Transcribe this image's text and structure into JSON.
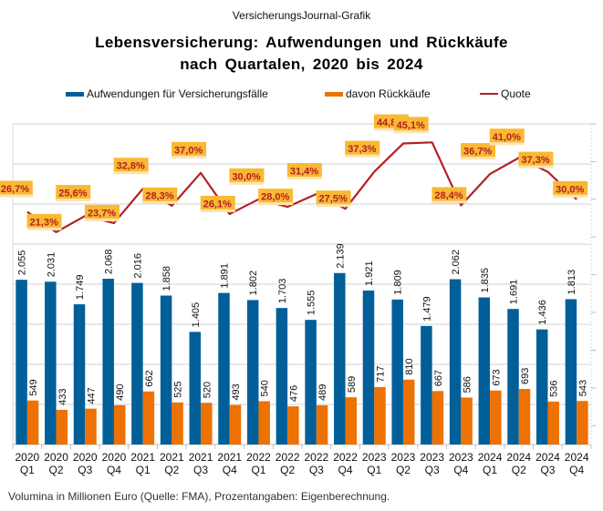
{
  "header": {
    "source": "VersicherungsJournal-Grafik",
    "title_line1": "Lebensversicherung: Aufwendungen und Rückkäufe",
    "title_line2": "nach Quartalen, 2020 bis 2024"
  },
  "footnote": "Volumina in Millionen Euro (Quelle: FMA), Prozentangaben: Eigenberechnung.",
  "colors": {
    "aufwendungen": "#005f99",
    "rueckkaeufe": "#ed7103",
    "quote": "#b32025",
    "label_box": "#f9b933",
    "grid": "#d0d0d0"
  },
  "chart_data": {
    "type": "bar",
    "title": "Lebensversicherung: Aufwendungen und Rückkäufe nach Quartalen, 2020 bis 2024",
    "xlabel": "",
    "ylabel": "Volumina in Millionen Euro",
    "ylim": [
      0,
      4000
    ],
    "y2lim": [
      -35,
      50
    ],
    "grid": true,
    "legend_position": "top",
    "categories": [
      [
        "2020",
        "Q1"
      ],
      [
        "2020",
        "Q2"
      ],
      [
        "2020",
        "Q3"
      ],
      [
        "2020",
        "Q4"
      ],
      [
        "2021",
        "Q1"
      ],
      [
        "2021",
        "Q2"
      ],
      [
        "2021",
        "Q3"
      ],
      [
        "2021",
        "Q4"
      ],
      [
        "2022",
        "Q1"
      ],
      [
        "2022",
        "Q2"
      ],
      [
        "2022",
        "Q3"
      ],
      [
        "2022",
        "Q4"
      ],
      [
        "2023",
        "Q1"
      ],
      [
        "2023",
        "Q2"
      ],
      [
        "2023",
        "Q3"
      ],
      [
        "2023",
        "Q4"
      ],
      [
        "2024",
        "Q1"
      ],
      [
        "2024",
        "Q2"
      ],
      [
        "2024",
        "Q3"
      ],
      [
        "2024",
        "Q4"
      ]
    ],
    "series": [
      {
        "name": "Aufwendungen für Versicherungsfälle",
        "kind": "bar",
        "values": [
          2055,
          2031,
          1749,
          2068,
          2016,
          1858,
          1405,
          1891,
          1802,
          1703,
          1555,
          2139,
          1921,
          1809,
          1479,
          2062,
          1835,
          1691,
          1436,
          1813
        ],
        "labels": [
          "2.055",
          "2.031",
          "1.749",
          "2.068",
          "2.016",
          "1.858",
          "1.405",
          "1.891",
          "1.802",
          "1.703",
          "1.555",
          "2.139",
          "1.921",
          "1.809",
          "1.479",
          "2.062",
          "1.835",
          "1.691",
          "1.436",
          "1.813"
        ]
      },
      {
        "name": "davon Rückkäufe",
        "kind": "bar",
        "values": [
          549,
          433,
          447,
          490,
          662,
          525,
          520,
          493,
          540,
          476,
          489,
          589,
          717,
          810,
          667,
          586,
          673,
          693,
          536,
          543
        ],
        "labels": [
          "549",
          "433",
          "447",
          "490",
          "662",
          "525",
          "520",
          "493",
          "540",
          "476",
          "489",
          "589",
          "717",
          "810",
          "667",
          "586",
          "673",
          "693",
          "536",
          "543"
        ]
      },
      {
        "name": "Quote",
        "kind": "line",
        "axis": "secondary",
        "values": [
          26.7,
          21.3,
          25.6,
          23.7,
          32.8,
          28.3,
          37.0,
          26.1,
          30.0,
          28.0,
          31.4,
          27.5,
          37.3,
          44.8,
          45.1,
          28.4,
          36.7,
          41.0,
          37.3,
          30.0
        ],
        "labels": [
          "26,7%",
          "21,3%",
          "25,6%",
          "23,7%",
          "32,8%",
          "28,3%",
          "37,0%",
          "26,1%",
          "30,0%",
          "28,0%",
          "31,4%",
          "27,5%",
          "37,3%",
          "44,8%",
          "45,1%",
          "28,4%",
          "36,7%",
          "41,0%",
          "37,3%",
          "30,0%"
        ]
      }
    ]
  }
}
